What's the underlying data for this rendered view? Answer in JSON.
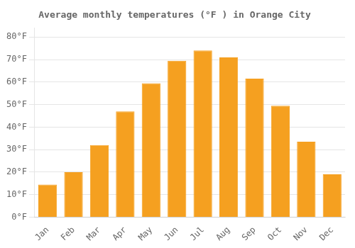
{
  "chart_data": {
    "type": "bar",
    "title": "Average monthly temperatures (°F ) in Orange City",
    "categories": [
      "Jan",
      "Feb",
      "Mar",
      "Apr",
      "May",
      "Jun",
      "Jul",
      "Aug",
      "Sep",
      "Oct",
      "Nov",
      "Dec"
    ],
    "values": [
      14.5,
      20.0,
      32.0,
      47.0,
      59.5,
      69.5,
      74.0,
      71.0,
      61.5,
      49.5,
      33.5,
      19.0
    ],
    "color": "#F5A020",
    "ylim": [
      0,
      84
    ],
    "yticks": [
      {
        "value": 0,
        "label": "0°F"
      },
      {
        "value": 10,
        "label": "10°F"
      },
      {
        "value": 20,
        "label": "20°F"
      },
      {
        "value": 30,
        "label": "30°F"
      },
      {
        "value": 40,
        "label": "40°F"
      },
      {
        "value": 50,
        "label": "50°F"
      },
      {
        "value": 60,
        "label": "60°F"
      },
      {
        "value": 70,
        "label": "70°F"
      },
      {
        "value": 80,
        "label": "80°F"
      }
    ],
    "grid": true
  }
}
